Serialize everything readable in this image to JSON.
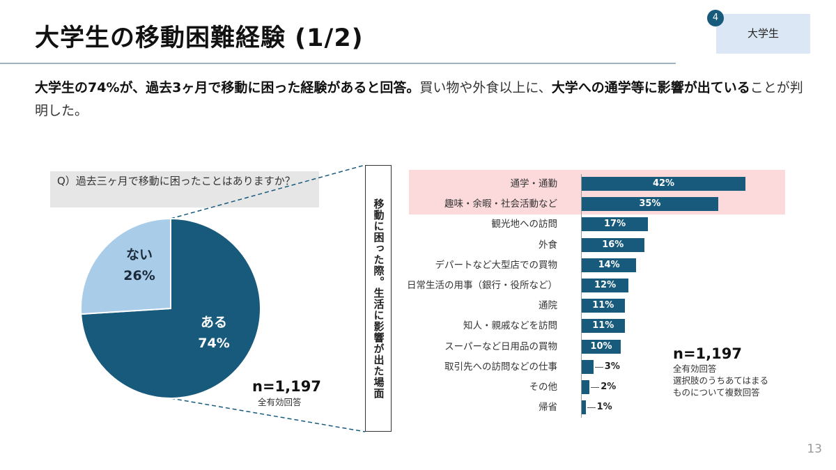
{
  "header": {
    "title": "大学生の移動困難経験 (1/2)",
    "section_number": "4",
    "section_label": "大学生"
  },
  "lead": {
    "part1": "大学生の74%が、過去3ヶ月で移動に困った経験があると回答。",
    "part2": "買い物や外食以上に、",
    "part3": "大学への通学等に影響が出ている",
    "part4": "ことが判明した。"
  },
  "question": "Q）過去三ヶ月で移動に困ったことはありますか？",
  "vertical_label": "移動に困った際。生活に影響が出た場面",
  "left_note": {
    "n": "n=1,197",
    "line1": "全有効回答"
  },
  "right_note": {
    "n": "n=1,197",
    "line1": "全有効回答",
    "line2": "選択肢のうちあてはまる",
    "line3": "ものについて複数回答"
  },
  "page_number": "13",
  "colors": {
    "dark": "#175a7c",
    "light": "#a9cce8",
    "highlight": "#fcd9db"
  },
  "chart_data": [
    {
      "type": "pie",
      "slices": [
        {
          "label": "ある",
          "value": 74,
          "value_label": "74%",
          "color": "#175a7c"
        },
        {
          "label": "ない",
          "value": 26,
          "value_label": "26%",
          "color": "#a9cce8"
        }
      ]
    },
    {
      "type": "bar",
      "orientation": "horizontal",
      "xlim": [
        0,
        42
      ],
      "categories": [
        "通学・通勤",
        "趣味・余暇・社会活動など",
        "観光地への訪問",
        "外食",
        "デパートなど大型店での買物",
        "日常生活の用事（銀行・役所など）",
        "通院",
        "知人・親戚などを訪問",
        "スーパーなど日用品の買物",
        "取引先への訪問などの仕事",
        "その他",
        "帰省"
      ],
      "values": [
        42,
        35,
        17,
        16,
        14,
        12,
        11,
        11,
        10,
        3,
        2,
        1
      ],
      "value_labels": [
        "42%",
        "35%",
        "17%",
        "16%",
        "14%",
        "12%",
        "11%",
        "11%",
        "10%",
        "3%",
        "2%",
        "1%"
      ],
      "highlighted_categories": [
        "通学・通勤",
        "趣味・余暇・社会活動など"
      ]
    }
  ]
}
